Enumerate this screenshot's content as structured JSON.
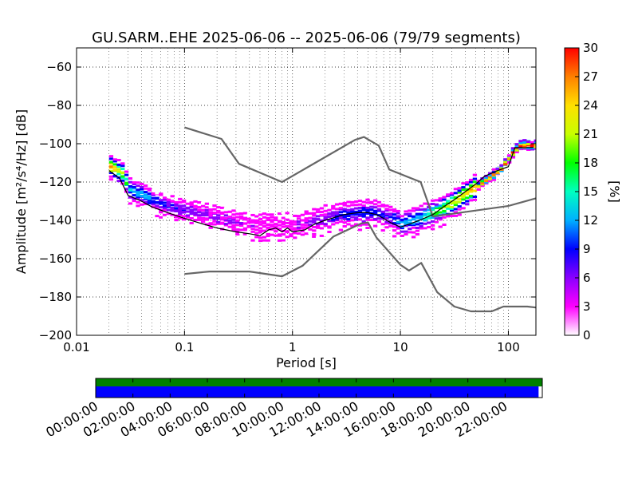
{
  "chart_data": [
    {
      "type": "heatmap",
      "title": "GU.SARM..EHE   2025-06-06 -- 2025-06-06  (79/79 segments)",
      "xlabel": "Period [s]",
      "ylabel": "Amplitude [m²/s⁴/Hz] [dB]",
      "x_scale": "log",
      "xlim": [
        0.01,
        180
      ],
      "ylim": [
        -200,
        -50
      ],
      "x_ticks": [
        "0.01",
        "0.1",
        "1",
        "10",
        "100"
      ],
      "y_ticks": [
        "−60",
        "−80",
        "−100",
        "−120",
        "−140",
        "−160",
        "−180",
        "−200"
      ],
      "x_tick_values": [
        0.01,
        0.1,
        1,
        10,
        100
      ],
      "y_tick_values": [
        -60,
        -80,
        -100,
        -120,
        -140,
        -160,
        -180,
        -200
      ],
      "grid": true,
      "colorbar": {
        "label": "[%]",
        "range": [
          0,
          30
        ],
        "ticks": [
          "0",
          "3",
          "6",
          "9",
          "12",
          "15",
          "18",
          "21",
          "24",
          "27",
          "30"
        ],
        "colors": [
          "#ffffff",
          "#ff00ff",
          "#8a00ff",
          "#0000ff",
          "#00b0ff",
          "#00ffc0",
          "#00ff00",
          "#c8ff00",
          "#ffe000",
          "#ff8000",
          "#ff0000"
        ]
      },
      "series": [
        {
          "role": "model-high",
          "color": "#666666",
          "points": [
            [
              0.1,
              -91.5
            ],
            [
              0.22,
              -97.5
            ],
            [
              0.32,
              -110.5
            ],
            [
              0.8,
              -120
            ],
            [
              3.8,
              -98
            ],
            [
              4.6,
              -96.5
            ],
            [
              6.3,
              -101
            ],
            [
              7.9,
              -113.5
            ],
            [
              15.4,
              -120
            ],
            [
              20,
              -138
            ],
            [
              100,
              -132.5
            ],
            [
              180,
              -128.5
            ]
          ]
        },
        {
          "role": "model-low",
          "color": "#666666",
          "points": [
            [
              0.1,
              -168
            ],
            [
              0.17,
              -166.7
            ],
            [
              0.4,
              -166.7
            ],
            [
              0.8,
              -169.2
            ],
            [
              1.24,
              -163.7
            ],
            [
              2.4,
              -148.4
            ],
            [
              4.3,
              -141.7
            ],
            [
              5.0,
              -141.1
            ],
            [
              6.0,
              -149
            ],
            [
              10,
              -163.2
            ],
            [
              12,
              -166.2
            ],
            [
              15.6,
              -162.2
            ],
            [
              21.9,
              -177.5
            ],
            [
              31.6,
              -185
            ],
            [
              45,
              -187.5
            ],
            [
              70,
              -187.5
            ],
            [
              90,
              -185
            ],
            [
              150,
              -185
            ],
            [
              180,
              -185.5
            ]
          ]
        },
        {
          "role": "mode",
          "color": "#000000",
          "points": [
            [
              0.02,
              -114
            ],
            [
              0.025,
              -118
            ],
            [
              0.03,
              -127
            ],
            [
              0.04,
              -130
            ],
            [
              0.05,
              -133
            ],
            [
              0.07,
              -136
            ],
            [
              0.1,
              -139
            ],
            [
              0.15,
              -142
            ],
            [
              0.2,
              -144
            ],
            [
              0.3,
              -146
            ],
            [
              0.4,
              -147
            ],
            [
              0.5,
              -148
            ],
            [
              0.6,
              -145
            ],
            [
              0.7,
              -144
            ],
            [
              0.8,
              -146
            ],
            [
              0.9,
              -144
            ],
            [
              1.0,
              -146
            ],
            [
              1.3,
              -145
            ],
            [
              1.6,
              -142
            ],
            [
              2.0,
              -140
            ],
            [
              3.0,
              -137
            ],
            [
              4.0,
              -136
            ],
            [
              5.0,
              -136
            ],
            [
              6.0,
              -137
            ],
            [
              7.0,
              -139
            ],
            [
              8.0,
              -141
            ],
            [
              10,
              -143.5
            ],
            [
              12,
              -142
            ],
            [
              15,
              -140
            ],
            [
              20,
              -137
            ],
            [
              25,
              -133
            ],
            [
              32,
              -129
            ],
            [
              40,
              -125
            ],
            [
              50,
              -121
            ],
            [
              60,
              -117
            ],
            [
              80,
              -114
            ],
            [
              100,
              -112
            ],
            [
              115,
              -102
            ],
            [
              170,
              -102
            ]
          ]
        }
      ],
      "density": [
        [
          0.02,
          -112,
          18
        ],
        [
          0.025,
          -115,
          15
        ],
        [
          0.03,
          -124,
          9
        ],
        [
          0.04,
          -127,
          8
        ],
        [
          0.05,
          -130,
          6
        ],
        [
          0.07,
          -133,
          5
        ],
        [
          0.1,
          -135,
          4
        ],
        [
          0.15,
          -137,
          3
        ],
        [
          0.2,
          -139,
          3
        ],
        [
          0.3,
          -141,
          3
        ],
        [
          0.4,
          -142,
          2
        ],
        [
          0.5,
          -143,
          2
        ],
        [
          0.7,
          -143,
          2
        ],
        [
          1.0,
          -143,
          2
        ],
        [
          1.5,
          -141,
          3
        ],
        [
          2.0,
          -139,
          4
        ],
        [
          3.0,
          -137,
          6
        ],
        [
          5.0,
          -136,
          6
        ],
        [
          7.0,
          -138,
          5
        ],
        [
          10,
          -142,
          7
        ],
        [
          15,
          -139,
          9
        ],
        [
          20,
          -136,
          12
        ],
        [
          30,
          -131,
          15
        ],
        [
          50,
          -122,
          18
        ],
        [
          80,
          -114,
          20
        ],
        [
          120,
          -101,
          22
        ]
      ]
    },
    {
      "type": "timeline",
      "ticks": [
        "00:00:00",
        "02:00:00",
        "04:00:00",
        "06:00:00",
        "08:00:00",
        "10:00:00",
        "12:00:00",
        "14:00:00",
        "16:00:00",
        "18:00:00",
        "20:00:00",
        "22:00:00"
      ],
      "data_availability": {
        "color": "#008000",
        "start_hour": 0,
        "end_hour": 24
      },
      "psd_segments": {
        "color": "#0000ff",
        "start_hour": 0,
        "end_hour": 23.8
      }
    }
  ]
}
